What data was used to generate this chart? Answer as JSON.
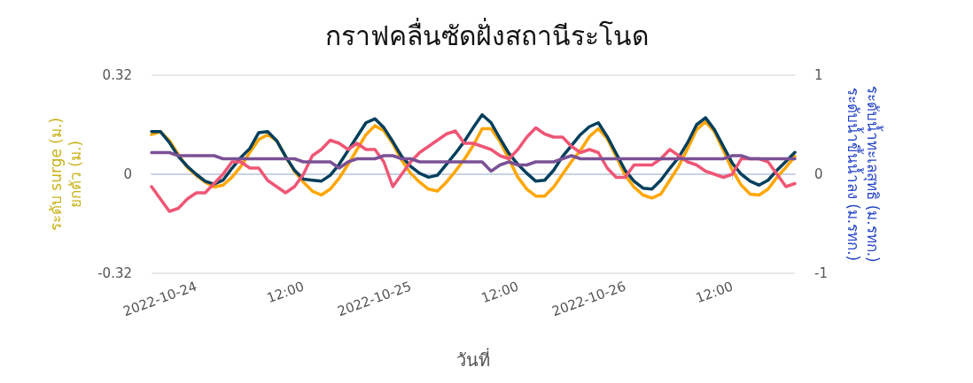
{
  "chart_data": {
    "type": "line",
    "title": "กราฟคลื่นซัดฝั่งสถานีระโนด",
    "xlabel": "วันที่",
    "ylabel": "ระดับ surge (ม.)\nยกตัว (ม.)",
    "y2label": "ระดับน้ำทะเลสุทธิ (ม.รทก.)\nระดับน้ำขึ้นน้ำลง (ม.รทก.)",
    "x": [
      "2022-10-23T19:00",
      "2022-10-23T20:00",
      "2022-10-23T21:00",
      "2022-10-23T22:00",
      "2022-10-23T23:00",
      "2022-10-24T00:00",
      "2022-10-24T01:00",
      "2022-10-24T02:00",
      "2022-10-24T03:00",
      "2022-10-24T04:00",
      "2022-10-24T05:00",
      "2022-10-24T06:00",
      "2022-10-24T07:00",
      "2022-10-24T08:00",
      "2022-10-24T09:00",
      "2022-10-24T10:00",
      "2022-10-24T11:00",
      "2022-10-24T12:00",
      "2022-10-24T13:00",
      "2022-10-24T14:00",
      "2022-10-24T15:00",
      "2022-10-24T16:00",
      "2022-10-24T17:00",
      "2022-10-24T18:00",
      "2022-10-24T19:00",
      "2022-10-24T20:00",
      "2022-10-24T21:00",
      "2022-10-24T22:00",
      "2022-10-24T23:00",
      "2022-10-25T00:00",
      "2022-10-25T01:00",
      "2022-10-25T02:00",
      "2022-10-25T03:00",
      "2022-10-25T04:00",
      "2022-10-25T05:00",
      "2022-10-25T06:00",
      "2022-10-25T07:00",
      "2022-10-25T08:00",
      "2022-10-25T09:00",
      "2022-10-25T10:00",
      "2022-10-25T11:00",
      "2022-10-25T12:00",
      "2022-10-25T13:00",
      "2022-10-25T14:00",
      "2022-10-25T15:00",
      "2022-10-25T16:00",
      "2022-10-25T17:00",
      "2022-10-25T18:00",
      "2022-10-25T19:00",
      "2022-10-25T20:00",
      "2022-10-25T21:00",
      "2022-10-25T22:00",
      "2022-10-25T23:00",
      "2022-10-26T00:00",
      "2022-10-26T01:00",
      "2022-10-26T02:00",
      "2022-10-26T03:00",
      "2022-10-26T04:00",
      "2022-10-26T05:00",
      "2022-10-26T06:00",
      "2022-10-26T07:00",
      "2022-10-26T08:00",
      "2022-10-26T09:00",
      "2022-10-26T10:00",
      "2022-10-26T11:00",
      "2022-10-26T12:00",
      "2022-10-26T13:00",
      "2022-10-26T14:00",
      "2022-10-26T15:00",
      "2022-10-26T16:00",
      "2022-10-26T17:00",
      "2022-10-26T18:00",
      "2022-10-26T19:00"
    ],
    "series": [
      {
        "color": "#ffa600",
        "axis": "y2",
        "values": [
          0.4,
          0.43,
          0.34,
          0.2,
          0.07,
          -0.01,
          -0.08,
          -0.13,
          -0.11,
          -0.03,
          0.08,
          0.22,
          0.35,
          0.4,
          0.34,
          0.18,
          0.03,
          -0.08,
          -0.17,
          -0.21,
          -0.15,
          -0.04,
          0.1,
          0.25,
          0.4,
          0.49,
          0.44,
          0.31,
          0.14,
          0.01,
          -0.08,
          -0.15,
          -0.17,
          -0.08,
          0.03,
          0.15,
          0.29,
          0.46,
          0.46,
          0.33,
          0.15,
          -0.03,
          -0.15,
          -0.22,
          -0.22,
          -0.13,
          0,
          0.13,
          0.24,
          0.38,
          0.46,
          0.36,
          0.18,
          -0.01,
          -0.13,
          -0.21,
          -0.24,
          -0.2,
          -0.06,
          0.08,
          0.26,
          0.45,
          0.53,
          0.43,
          0.24,
          0.04,
          -0.11,
          -0.2,
          -0.21,
          -0.15,
          -0.03,
          0.07,
          0.18
        ]
      },
      {
        "color": "#003f5c",
        "axis": "y2",
        "values": [
          0.43,
          0.43,
          0.32,
          0.18,
          0.08,
          0,
          -0.07,
          -0.1,
          -0.06,
          0.06,
          0.17,
          0.26,
          0.42,
          0.43,
          0.34,
          0.18,
          0.04,
          -0.05,
          -0.06,
          -0.07,
          -0.01,
          0.1,
          0.24,
          0.38,
          0.52,
          0.56,
          0.47,
          0.33,
          0.18,
          0.08,
          0.01,
          -0.03,
          -0.01,
          0.1,
          0.21,
          0.33,
          0.47,
          0.6,
          0.52,
          0.36,
          0.21,
          0.1,
          0.01,
          -0.07,
          -0.06,
          0.04,
          0.18,
          0.29,
          0.4,
          0.48,
          0.52,
          0.38,
          0.21,
          0.04,
          -0.07,
          -0.14,
          -0.15,
          -0.06,
          0.06,
          0.17,
          0.32,
          0.5,
          0.57,
          0.45,
          0.28,
          0.11,
          0,
          -0.07,
          -0.11,
          -0.06,
          0.04,
          0.13,
          0.22
        ]
      },
      {
        "color": "#ef5675",
        "axis": "y",
        "values": [
          -0.04,
          -0.08,
          -0.12,
          -0.11,
          -0.08,
          -0.06,
          -0.06,
          -0.03,
          0,
          0.04,
          0.04,
          0.02,
          0.02,
          -0.02,
          -0.04,
          -0.06,
          -0.04,
          0,
          0.06,
          0.08,
          0.11,
          0.1,
          0.08,
          0.1,
          0.08,
          0.08,
          0.04,
          -0.04,
          0,
          0.04,
          0.07,
          0.09,
          0.11,
          0.13,
          0.14,
          0.1,
          0.1,
          0.09,
          0.08,
          0.06,
          0.05,
          0.08,
          0.12,
          0.15,
          0.13,
          0.12,
          0.12,
          0.09,
          0.07,
          0.08,
          0.07,
          0.02,
          -0.01,
          -0.01,
          0.03,
          0.03,
          0.03,
          0.05,
          0.08,
          0.06,
          0.04,
          0.03,
          0.01,
          0,
          -0.01,
          0,
          0.05,
          0.05,
          0.05,
          0.04,
          0,
          -0.04,
          -0.03
        ]
      },
      {
        "color": "#7a5195",
        "axis": "y",
        "values": [
          0.07,
          0.07,
          0.07,
          0.06,
          0.06,
          0.06,
          0.06,
          0.06,
          0.05,
          0.05,
          0.05,
          0.05,
          0.05,
          0.05,
          0.05,
          0.05,
          0.05,
          0.04,
          0.04,
          0.04,
          0.04,
          0.02,
          0.04,
          0.05,
          0.05,
          0.05,
          0.06,
          0.06,
          0.05,
          0.05,
          0.04,
          0.04,
          0.04,
          0.04,
          0.04,
          0.04,
          0.04,
          0.04,
          0.01,
          0.03,
          0.04,
          0.03,
          0.03,
          0.04,
          0.04,
          0.04,
          0.05,
          0.06,
          0.05,
          0.05,
          0.05,
          0.05,
          0.05,
          0.05,
          0.05,
          0.05,
          0.05,
          0.05,
          0.05,
          0.05,
          0.05,
          0.05,
          0.05,
          0.05,
          0.05,
          0.06,
          0.06,
          0.05,
          0.05,
          0.05,
          0.05,
          0.05,
          0.05
        ]
      }
    ],
    "xlim": [
      "2022-10-23T19:00",
      "2022-10-26T19:00"
    ],
    "xticks": [
      {
        "value": "2022-10-24T00:00",
        "label": "2022-10-24"
      },
      {
        "value": "2022-10-24T12:00",
        "label": "12:00"
      },
      {
        "value": "2022-10-25T00:00",
        "label": "2022-10-25"
      },
      {
        "value": "2022-10-25T12:00",
        "label": "12:00"
      },
      {
        "value": "2022-10-26T00:00",
        "label": "2022-10-26"
      },
      {
        "value": "2022-10-26T12:00",
        "label": "12:00"
      }
    ],
    "ylim": [
      -0.32,
      0.32
    ],
    "yticks": [
      -0.32,
      0,
      0.32
    ],
    "y2lim": [
      -1,
      1
    ],
    "y2ticks": [
      -1,
      0,
      1
    ],
    "grid": "y",
    "line_style": "solid"
  }
}
